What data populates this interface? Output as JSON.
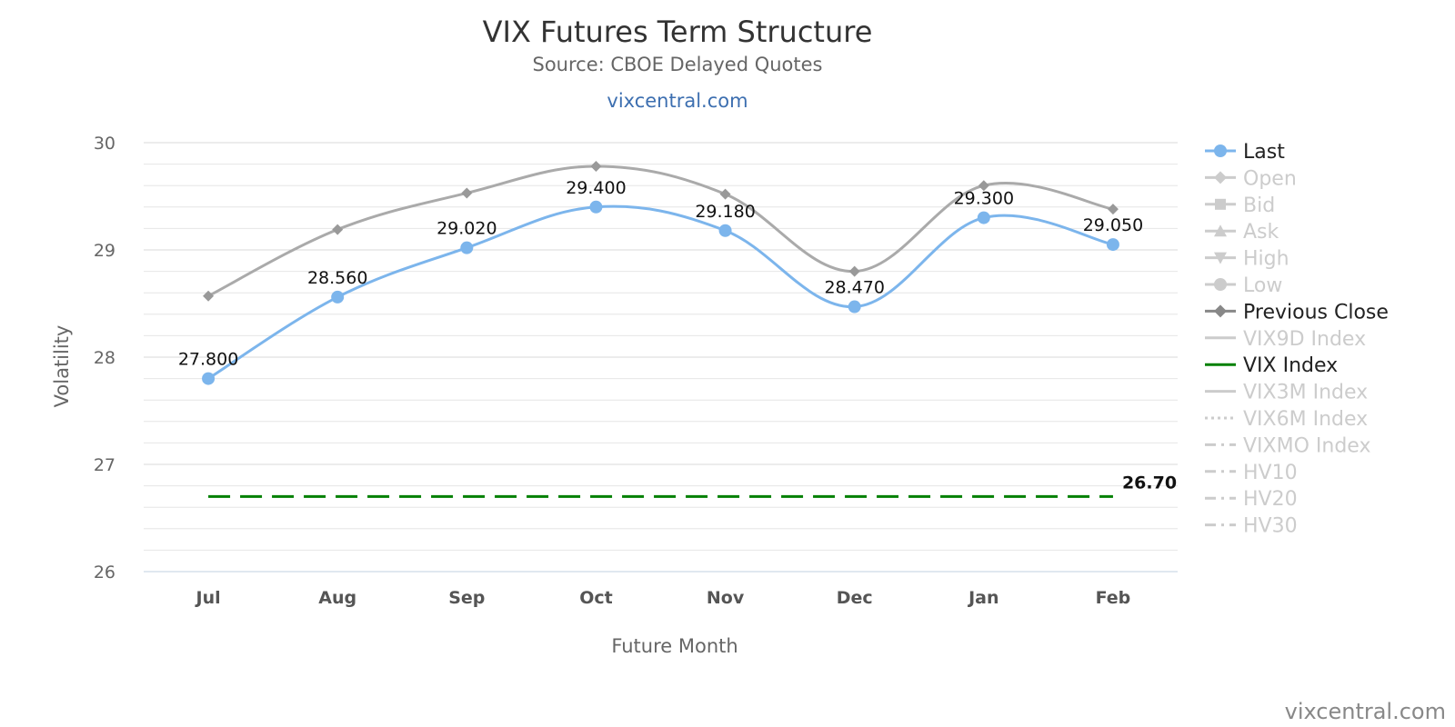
{
  "chart_data": {
    "type": "line",
    "title": "VIX Futures Term Structure",
    "subtitle": "Source: CBOE Delayed Quotes",
    "site_label": "vixcentral.com",
    "credit": "vixcentral.com",
    "xlabel": "Future Month",
    "ylabel": "Volatility",
    "categories": [
      "Jul",
      "Aug",
      "Sep",
      "Oct",
      "Nov",
      "Dec",
      "Jan",
      "Feb"
    ],
    "ylim": [
      26,
      30
    ],
    "yticks": [
      "26",
      "27",
      "28",
      "29",
      "30"
    ],
    "grid": true,
    "legend_position": "right",
    "series": [
      {
        "name": "Last",
        "color": "#7cb5ec",
        "values": [
          27.8,
          28.56,
          29.02,
          29.4,
          29.18,
          28.47,
          29.3,
          29.05
        ],
        "data_labels": [
          "27.800",
          "28.560",
          "29.020",
          "29.400",
          "29.180",
          "28.470",
          "29.300",
          "29.050"
        ]
      },
      {
        "name": "Previous Close",
        "color": "#aaaaaa",
        "values": [
          28.57,
          29.19,
          29.53,
          29.78,
          29.52,
          28.8,
          29.6,
          29.38
        ]
      },
      {
        "name": "VIX Index",
        "color": "#008000",
        "style": "dashed",
        "values": [
          26.7,
          26.7,
          26.7,
          26.7,
          26.7,
          26.7,
          26.7,
          26.7
        ],
        "end_label": "26.70"
      }
    ],
    "legend": [
      {
        "name": "Last",
        "active": true,
        "symbol": "circle",
        "color": "#7cb5ec"
      },
      {
        "name": "Open",
        "active": false,
        "symbol": "diamond",
        "color": "#cccccc"
      },
      {
        "name": "Bid",
        "active": false,
        "symbol": "square",
        "color": "#cccccc"
      },
      {
        "name": "Ask",
        "active": false,
        "symbol": "triangle",
        "color": "#cccccc"
      },
      {
        "name": "High",
        "active": false,
        "symbol": "triangle-down",
        "color": "#cccccc"
      },
      {
        "name": "Low",
        "active": false,
        "symbol": "circle",
        "color": "#cccccc"
      },
      {
        "name": "Previous Close",
        "active": true,
        "symbol": "diamond",
        "color": "#888888"
      },
      {
        "name": "VIX9D Index",
        "active": false,
        "symbol": "line",
        "color": "#cccccc"
      },
      {
        "name": "VIX Index",
        "active": true,
        "symbol": "line",
        "color": "#008000"
      },
      {
        "name": "VIX3M Index",
        "active": false,
        "symbol": "line",
        "color": "#cccccc"
      },
      {
        "name": "VIX6M Index",
        "active": false,
        "symbol": "dotted",
        "color": "#cccccc"
      },
      {
        "name": "VIXMO Index",
        "active": false,
        "symbol": "dashdot",
        "color": "#cccccc"
      },
      {
        "name": "HV10",
        "active": false,
        "symbol": "dashdot",
        "color": "#cccccc"
      },
      {
        "name": "HV20",
        "active": false,
        "symbol": "dashdot",
        "color": "#cccccc"
      },
      {
        "name": "HV30",
        "active": false,
        "symbol": "dashdot",
        "color": "#cccccc"
      }
    ]
  }
}
